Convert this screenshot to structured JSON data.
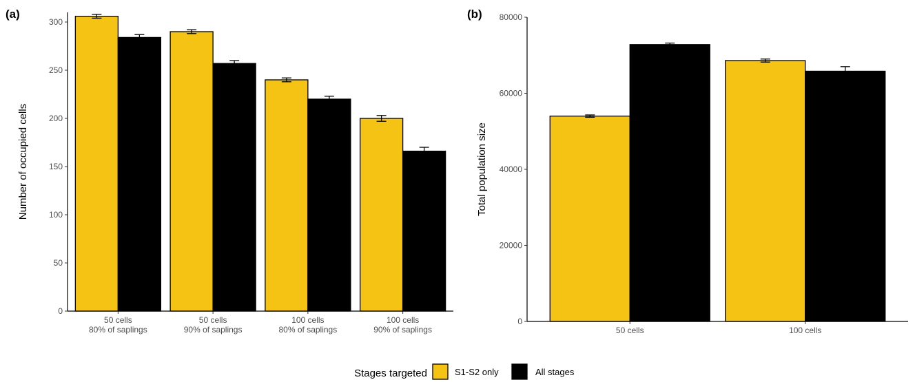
{
  "colors": {
    "s1s2": "#f5c314",
    "all": "#000000",
    "axis": "#000000",
    "tick_text": "#4d4d4d"
  },
  "legend": {
    "title": "Stages targeted",
    "items": [
      {
        "label": "S1-S2 only",
        "color": "#f5c314"
      },
      {
        "label": "All stages",
        "color": "#000000"
      }
    ]
  },
  "chart_data": [
    {
      "panel_label": "(a)",
      "type": "bar",
      "ylabel": "Number of occupied cells",
      "xlabel": "",
      "ylim": [
        0,
        310
      ],
      "yticks": [
        0,
        50,
        100,
        150,
        200,
        250,
        300
      ],
      "categories": [
        [
          "50 cells",
          "80% of saplings"
        ],
        [
          "50 cells",
          "90% of saplings"
        ],
        [
          "100 cells",
          "80% of saplings"
        ],
        [
          "100 cells",
          "90% of saplings"
        ]
      ],
      "series": [
        {
          "name": "S1-S2 only",
          "values": [
            306,
            290,
            240,
            200
          ],
          "errors": [
            2,
            2,
            2,
            3
          ]
        },
        {
          "name": "All stages",
          "values": [
            284,
            257,
            220,
            166
          ],
          "errors": [
            3,
            3,
            3,
            4
          ]
        }
      ]
    },
    {
      "panel_label": "(b)",
      "type": "bar",
      "ylabel": "Total population size",
      "xlabel": "",
      "ylim": [
        0,
        80000
      ],
      "yticks": [
        0,
        20000,
        40000,
        60000,
        80000
      ],
      "categories": [
        [
          "50 cells"
        ],
        [
          "100 cells"
        ]
      ],
      "series": [
        {
          "name": "S1-S2 only",
          "values": [
            54000,
            68600
          ],
          "errors": [
            300,
            400
          ]
        },
        {
          "name": "All stages",
          "values": [
            72800,
            65800
          ],
          "errors": [
            400,
            1200
          ]
        }
      ]
    }
  ]
}
